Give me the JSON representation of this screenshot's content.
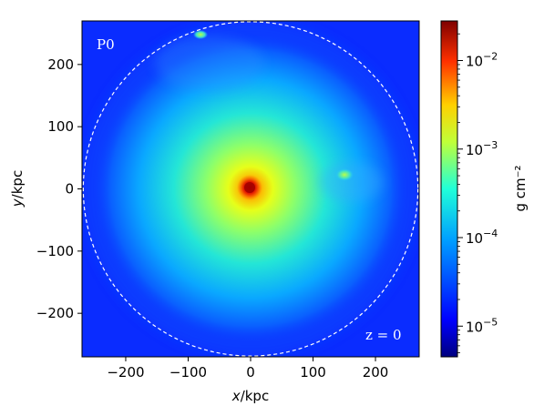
{
  "chart_data": {
    "type": "heatmap",
    "description_free": true,
    "panel_label": "P0",
    "redshift_label": "z = 0",
    "xlabel_italic": "x",
    "xlabel_unit": "/kpc",
    "ylabel_italic": "y",
    "ylabel_unit": "/kpc",
    "xlim": [
      -270,
      270
    ],
    "ylim": [
      -270,
      270
    ],
    "xticks": [
      -200,
      -100,
      0,
      100,
      200
    ],
    "yticks": [
      -200,
      -100,
      0,
      100,
      200
    ],
    "xtick_labels": [
      "−200",
      "−100",
      "0",
      "100",
      "200"
    ],
    "ytick_labels": [
      "−200",
      "−100",
      "0",
      "100",
      "200"
    ],
    "circle_radius_kpc": 268,
    "colorbar": {
      "label": "g cm⁻²",
      "scale": "log",
      "vmin": 4.5e-06,
      "vmax": 0.028,
      "ticks": [
        1e-05,
        0.0001,
        0.001,
        0.01
      ],
      "tick_bases": [
        "10",
        "10",
        "10",
        "10"
      ],
      "tick_exponents": [
        "−5",
        "−4",
        "−3",
        "−2"
      ],
      "colormap": "jet"
    },
    "features": [
      {
        "x": 0,
        "y": 0,
        "value": 0.015
      },
      {
        "x": 150,
        "y": 20,
        "value": 0.0005
      },
      {
        "x": -80,
        "y": 250,
        "value": 0.0004
      }
    ]
  },
  "colors": {
    "background_field": "#0a2cff",
    "circle": "#ffffff",
    "text_on_plot": "#ffffff"
  }
}
